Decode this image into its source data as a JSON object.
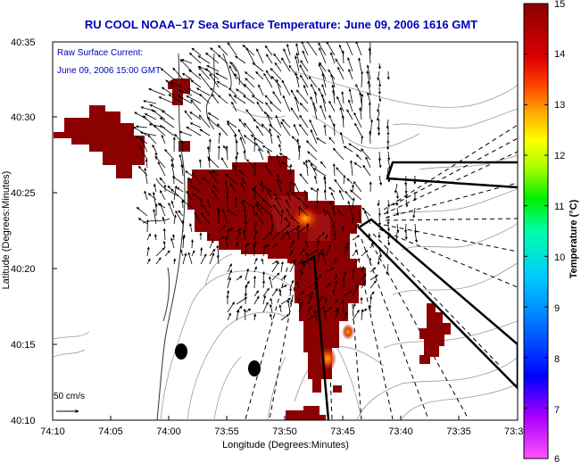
{
  "title": "RU COOL  NOAA–17  Sea Surface Temperature:  June 09, 2006 1616 GMT",
  "overlay": {
    "line1": "Raw Surface Current:",
    "line2": "June 09, 2006 15:00 GMT"
  },
  "scale": {
    "label": "50 cm/s"
  },
  "axes": {
    "xlabel": "Longitude (Degrees:Minutes)",
    "ylabel": "Latitude (Degrees:Minutes)",
    "xticks": [
      "74:10",
      "74:05",
      "74:00",
      "73:55",
      "73:50",
      "73:45",
      "73:40",
      "73:35",
      "73:3"
    ],
    "yticks": [
      "40:35",
      "40:30",
      "40:25",
      "40:20",
      "40:15",
      "40:10"
    ]
  },
  "colorbar": {
    "title": "Temperature (°C)",
    "labels": [
      "15",
      "14",
      "13",
      "12",
      "11",
      "10",
      "9",
      "8",
      "7",
      "6"
    ],
    "min": 6,
    "max": 15
  },
  "colors": {
    "title": "#0000bb",
    "sst_high": "#8b0000",
    "sst_warm": "#a01010",
    "sst_hot": "#e85000",
    "sst_peak": "#ffaa00"
  }
}
